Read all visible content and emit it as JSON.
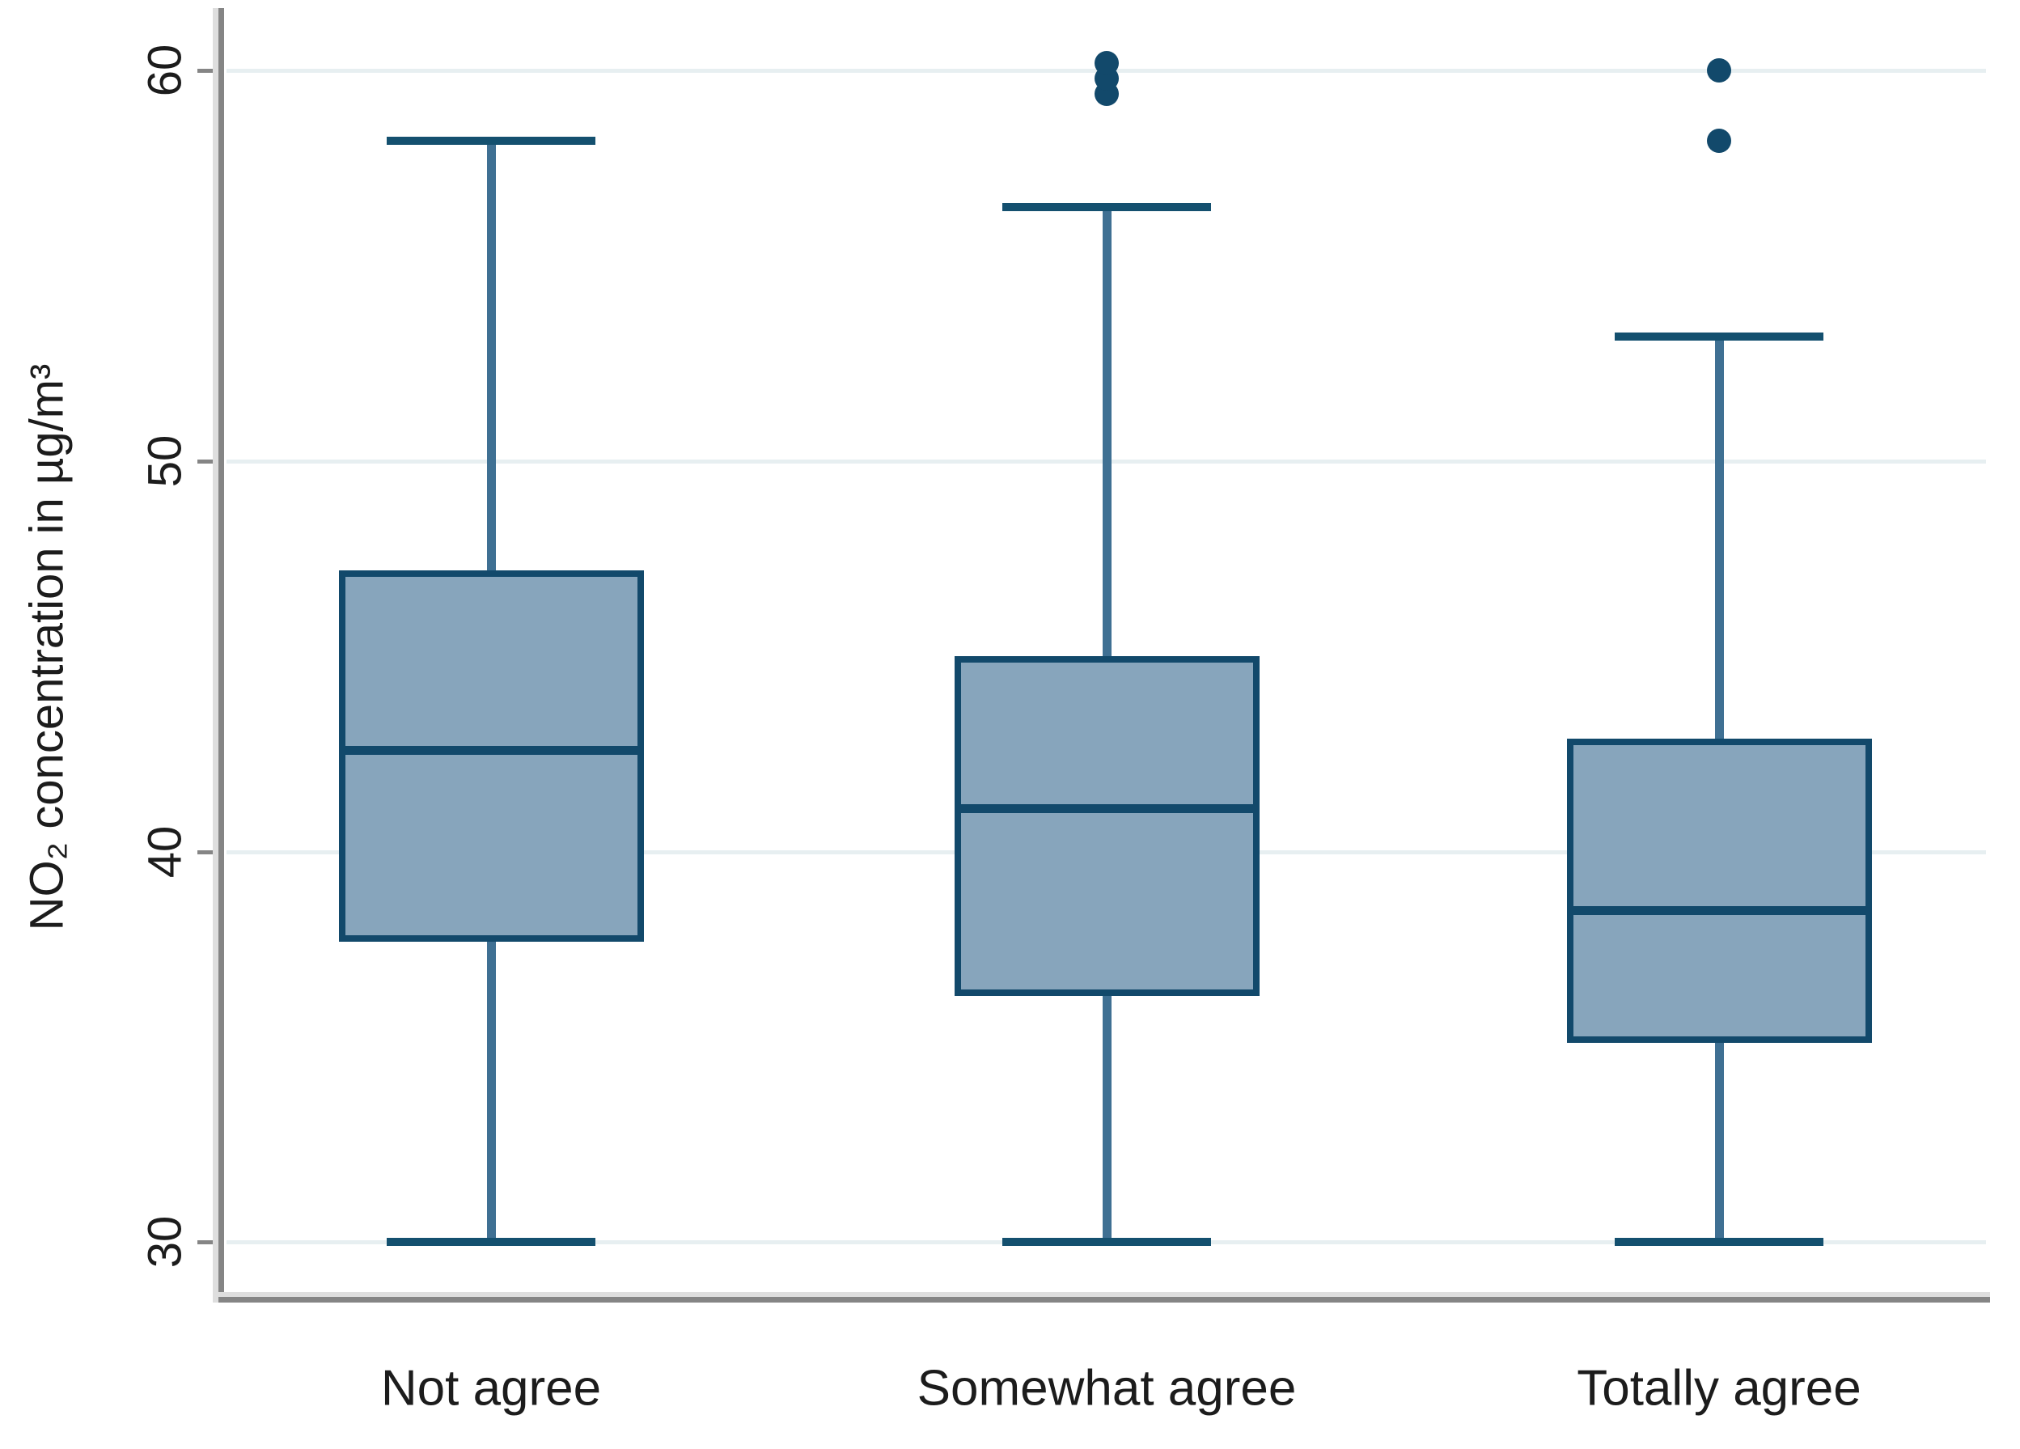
{
  "chart_data": {
    "type": "box",
    "title": "",
    "xlabel": "",
    "ylabel": "NO₂ concentration in µg/m³",
    "yticks": [
      30,
      40,
      50,
      60
    ],
    "ylim": [
      28.6,
      61.5
    ],
    "grid": "horizontal-light",
    "legend_position": "none",
    "categories": [
      "Not agree",
      "Somewhat agree",
      "Totally agree"
    ],
    "series": [
      {
        "name": "Not agree",
        "whisker_low": 30,
        "q1": 37.7,
        "median": 42.6,
        "q3": 47.2,
        "whisker_high": 58.2,
        "outliers": []
      },
      {
        "name": "Somewhat agree",
        "whisker_low": 30,
        "q1": 36.3,
        "median": 41.1,
        "q3": 45.0,
        "whisker_high": 56.5,
        "outliers": [
          59.4,
          59.8,
          60.2
        ]
      },
      {
        "name": "Totally agree",
        "whisker_low": 30,
        "q1": 35.1,
        "median": 38.5,
        "q3": 42.9,
        "whisker_high": 53.2,
        "outliers": [
          58.2,
          60.0
        ]
      }
    ],
    "colors": {
      "box_fill": "#87a5bc",
      "box_border": "#12496b",
      "median_line": "#12496b",
      "whisker_stem": "#3f7093",
      "whisker_cap": "#14506f",
      "outlier_dot": "#12496b",
      "gridline": "#e7eff1",
      "axis_dark": "#858585",
      "axis_light": "#dedede",
      "text": "#1c1c1c"
    }
  }
}
